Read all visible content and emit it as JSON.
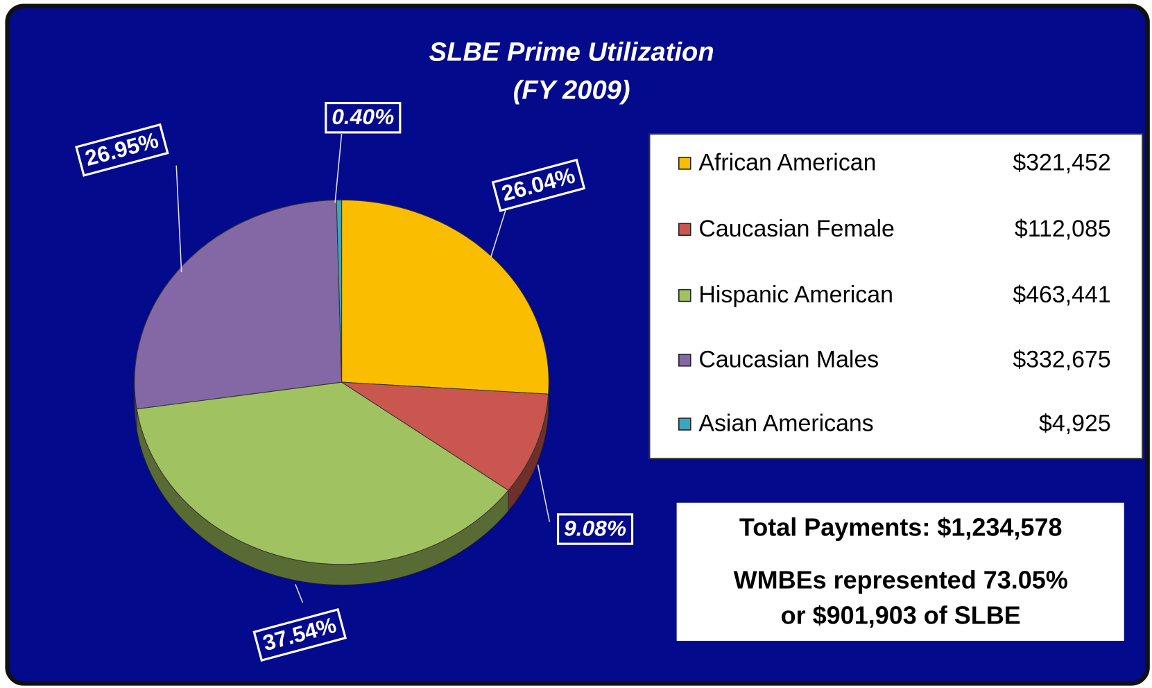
{
  "chart_data": {
    "type": "pie",
    "title": "SLBE Prime Utilization",
    "subtitle": "(FY 2009)",
    "categories": [
      "African American",
      "Caucasian Female",
      "Hispanic American",
      "Caucasian Males",
      "Asian Americans"
    ],
    "values": [
      26.04,
      9.08,
      37.54,
      26.95,
      0.4
    ],
    "value_labels": [
      "26.04%",
      "9.08%",
      "37.54%",
      "26.95%",
      "0.40%"
    ],
    "colors": [
      "#fbbd00",
      "#c9574f",
      "#a1c260",
      "#8468a6",
      "#3aa6c2"
    ],
    "legend_amounts": [
      "$321,452",
      "$112,085",
      "$463,441",
      "$332,675",
      "$4,925"
    ],
    "annotations": [
      "Total Payments: $1,234,578",
      "WMBEs represented 73.05%",
      "or $901,903 of SLBE"
    ]
  }
}
